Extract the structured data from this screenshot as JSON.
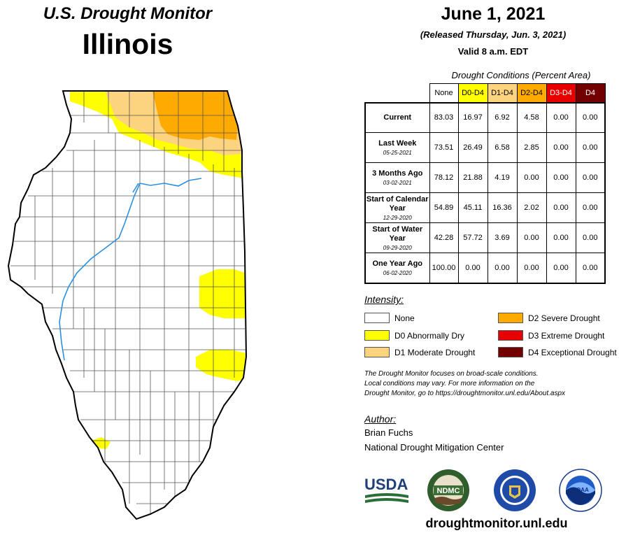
{
  "header": {
    "title": "U.S. Drought Monitor",
    "state": "Illinois",
    "date": "June 1, 2021",
    "released": "(Released Thursday, Jun. 3, 2021)",
    "valid": "Valid 8 a.m. EDT"
  },
  "table": {
    "caption": "Drought Conditions (Percent Area)",
    "columns": [
      "None",
      "D0-D4",
      "D1-D4",
      "D2-D4",
      "D3-D4",
      "D4"
    ],
    "column_colors": [
      "#ffffff",
      "#ffff00",
      "#fcd37f",
      "#ffaa00",
      "#e60000",
      "#730000"
    ],
    "column_text_colors": [
      "#000000",
      "#000000",
      "#000000",
      "#000000",
      "#ffffff",
      "#ffffff"
    ],
    "rows": [
      {
        "label": "Current",
        "date": "",
        "values": [
          "83.03",
          "16.97",
          "6.92",
          "4.58",
          "0.00",
          "0.00"
        ]
      },
      {
        "label": "Last Week",
        "date": "05-25-2021",
        "values": [
          "73.51",
          "26.49",
          "6.58",
          "2.85",
          "0.00",
          "0.00"
        ]
      },
      {
        "label": "3 Months Ago",
        "date": "03-02-2021",
        "values": [
          "78.12",
          "21.88",
          "4.19",
          "0.00",
          "0.00",
          "0.00"
        ]
      },
      {
        "label": "Start of Calendar Year",
        "date": "12-29-2020",
        "values": [
          "54.89",
          "45.11",
          "16.36",
          "2.02",
          "0.00",
          "0.00"
        ]
      },
      {
        "label": "Start of Water Year",
        "date": "09-29-2020",
        "values": [
          "42.28",
          "57.72",
          "3.69",
          "0.00",
          "0.00",
          "0.00"
        ]
      },
      {
        "label": "One Year Ago",
        "date": "06-02-2020",
        "values": [
          "100.00",
          "0.00",
          "0.00",
          "0.00",
          "0.00",
          "0.00"
        ]
      }
    ]
  },
  "intensity": {
    "title": "Intensity:",
    "items": [
      {
        "label": "None",
        "color": "#ffffff"
      },
      {
        "label": "D0 Abnormally Dry",
        "color": "#ffff00"
      },
      {
        "label": "D1 Moderate Drought",
        "color": "#fcd37f"
      },
      {
        "label": "D2 Severe Drought",
        "color": "#ffaa00"
      },
      {
        "label": "D3 Extreme Drought",
        "color": "#e60000"
      },
      {
        "label": "D4 Exceptional Drought",
        "color": "#730000"
      }
    ]
  },
  "note": [
    "The Drought Monitor focuses on broad-scale conditions.",
    "Local conditions may vary. For more information on the",
    "Drought Monitor, go to https://droughtmonitor.unl.edu/About.aspx"
  ],
  "author": {
    "title": "Author:",
    "name": "Brian Fuchs",
    "org": "National Drought Mitigation Center"
  },
  "logos": {
    "usda": "USDA",
    "ndmc": "NDMC",
    "noaa": "NOAA"
  },
  "url": "droughtmonitor.unl.edu"
}
